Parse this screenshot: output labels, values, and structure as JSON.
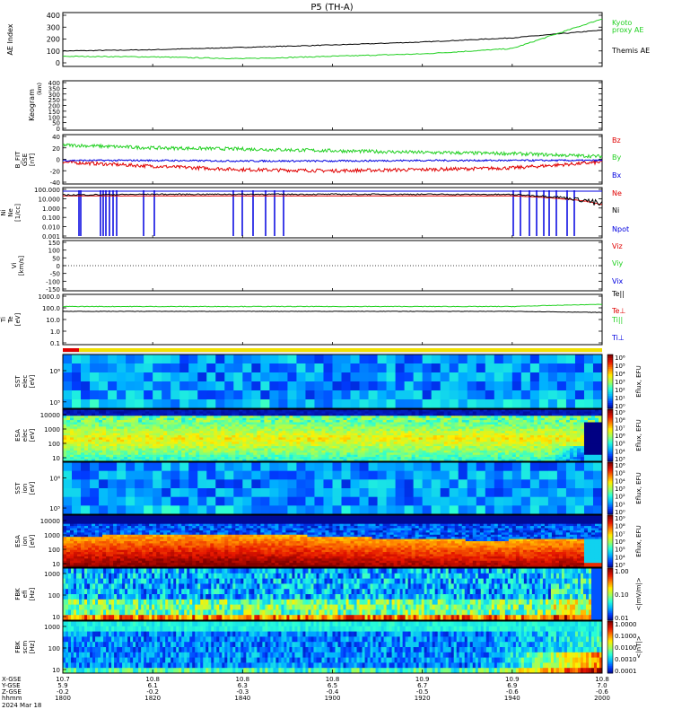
{
  "title": "P5 (TH-A)",
  "colors": {
    "black": "#000000",
    "red": "#e00000",
    "green": "#22d022",
    "blue": "#0000e0",
    "kyoto": "#10c010"
  },
  "panels": [
    {
      "id": "ae",
      "ylabel": "AE Index",
      "ticks": [
        "400",
        "300",
        "200",
        "100",
        "0"
      ],
      "legend": [
        {
          "text": "Kyoto",
          "color": "green"
        },
        {
          "text": "proxy AE",
          "color": "green"
        },
        {
          "text": "Themis AE",
          "color": "black"
        }
      ]
    },
    {
      "id": "keogram",
      "ylabel": "Keogram",
      "ticks": [
        "400",
        "350",
        "300",
        "250",
        "200",
        "150",
        "100",
        "50",
        "0"
      ],
      "legend": []
    },
    {
      "id": "bfield",
      "ylabel": "B_FIT\nGSE\n[nT]",
      "ticks": [
        "40",
        "20",
        "0",
        "-20",
        "-40"
      ],
      "legend": [
        {
          "text": "Bz",
          "color": "red"
        },
        {
          "text": "By",
          "color": "green"
        },
        {
          "text": "Bx",
          "color": "blue"
        }
      ]
    },
    {
      "id": "density",
      "ylabel": "Ni\nNe\n[1/cc]",
      "ticks": [
        "100.000",
        "10.000",
        "1.000",
        "0.100",
        "0.010",
        "0.001"
      ],
      "legend": [
        {
          "text": "Ne",
          "color": "red"
        },
        {
          "text": "Ni",
          "color": "black"
        },
        {
          "text": "Npot",
          "color": "blue"
        }
      ]
    },
    {
      "id": "velocity",
      "ylabel": "Vi\n[km/s]",
      "ticks": [
        "150",
        "100",
        "50",
        "0",
        "-50",
        "-100",
        "-150"
      ],
      "legend": [
        {
          "text": "Viz",
          "color": "red"
        },
        {
          "text": "Viy",
          "color": "green"
        },
        {
          "text": "Vix",
          "color": "blue"
        }
      ]
    },
    {
      "id": "temperature",
      "ylabel": "Ti\nTe\n[eV]",
      "ticks": [
        "1000.0",
        "100.0",
        "10.0",
        "1.0",
        "0.1"
      ],
      "legend": [
        {
          "text": "Te||",
          "color": "black"
        },
        {
          "text": "Te⊥",
          "color": "red"
        },
        {
          "text": "Ti||",
          "color": "green"
        },
        {
          "text": "Ti⊥",
          "color": "blue"
        }
      ]
    },
    {
      "id": "sst_e",
      "ylabel": "SST\nelec\n[eV]",
      "ticks": [
        "10⁶",
        "10⁵"
      ],
      "cbar": [
        "10⁶",
        "10⁵",
        "10⁴",
        "10³",
        "10²",
        "10¹",
        "10⁰"
      ],
      "cbar_label": "Eflux, EFU"
    },
    {
      "id": "esa_e",
      "ylabel": "ESA\nelec\n[eV]",
      "ticks": [
        "10000",
        "1000",
        "100",
        "10"
      ],
      "cbar": [
        "10⁹",
        "10⁸",
        "10⁷",
        "10⁶",
        "10⁵",
        "10⁴",
        "10³"
      ],
      "cbar_label": "Eflux, EFU"
    },
    {
      "id": "sst_i",
      "ylabel": "SST\nion\n[eV]",
      "ticks": [
        "10⁶",
        "10⁵"
      ],
      "cbar": [
        "10⁶",
        "10⁵",
        "10⁴",
        "10³",
        "10²",
        "10¹",
        "10⁰"
      ],
      "cbar_label": "Eflux, EFU"
    },
    {
      "id": "esa_i",
      "ylabel": "ESA\nion\n[eV]",
      "ticks": [
        "10000",
        "1000",
        "100",
        "10"
      ],
      "cbar": [
        "10⁹",
        "10⁸",
        "10⁷",
        "10⁶",
        "10⁵",
        "10⁴",
        "10³"
      ],
      "cbar_label": "Eflux, EFU"
    },
    {
      "id": "fbk_e",
      "ylabel": "FBK\nefi\n[Hz]",
      "ticks": [
        "1000",
        "100",
        "10"
      ],
      "cbar": [
        "1.00",
        "0.10",
        "0.01"
      ],
      "cbar_label": "<|mV/m|>"
    },
    {
      "id": "fbk_b",
      "ylabel": "FBK\nscm\n[Hz]",
      "ticks": [
        "1000",
        "100",
        "10"
      ],
      "cbar": [
        "1.0000",
        "0.1000",
        "0.0100",
        "0.0010",
        "0.0001"
      ],
      "cbar_label": "<|nT|>"
    }
  ],
  "xaxis": {
    "row_labels": [
      "X-GSE",
      "Y-GSE",
      "Z-GSE",
      "hhmm",
      "2024 Mar 18"
    ],
    "ticks": [
      {
        "x": "10.7",
        "y": "5.9",
        "z": "-0.2",
        "t": "1800"
      },
      {
        "x": "10.8",
        "y": "6.1",
        "z": "-0.2",
        "t": "1820"
      },
      {
        "x": "10.8",
        "y": "6.3",
        "z": "-0.3",
        "t": "1840"
      },
      {
        "x": "10.8",
        "y": "6.5",
        "z": "-0.4",
        "t": "1900"
      },
      {
        "x": "10.9",
        "y": "6.7",
        "z": "-0.5",
        "t": "1920"
      },
      {
        "x": "10.9",
        "y": "6.9",
        "z": "-0.6",
        "t": "1940"
      },
      {
        "x": "10.8",
        "y": "7.0",
        "z": "-0.6",
        "t": "2000"
      }
    ]
  },
  "chart_data": [
    {
      "type": "line",
      "panel": "AE index",
      "x": [
        "1800",
        "1820",
        "1840",
        "1900",
        "1920",
        "1940",
        "2000"
      ],
      "series": [
        {
          "name": "Themis AE",
          "values": [
            100,
            110,
            130,
            150,
            175,
            210,
            275
          ]
        },
        {
          "name": "Kyoto proxy AE",
          "values": [
            55,
            50,
            35,
            55,
            75,
            120,
            370
          ]
        }
      ],
      "ylim": [
        0,
        400
      ]
    },
    {
      "type": "line",
      "panel": "B_FIT GSE [nT]",
      "x": [
        "1800",
        "1820",
        "1840",
        "1900",
        "1920",
        "1940",
        "2000"
      ],
      "series": [
        {
          "name": "Bz",
          "values": [
            -5,
            -12,
            -18,
            -20,
            -18,
            -15,
            -5
          ]
        },
        {
          "name": "By",
          "values": [
            25,
            20,
            18,
            15,
            12,
            10,
            5
          ]
        },
        {
          "name": "Bx",
          "values": [
            -2,
            -2,
            -3,
            -3,
            -2,
            -2,
            -2
          ]
        }
      ],
      "ylim": [
        -40,
        40
      ]
    },
    {
      "type": "line",
      "panel": "Ni Ne [1/cc]",
      "x": [
        "1800",
        "1820",
        "1840",
        "1900",
        "1920",
        "1940",
        "2000"
      ],
      "series": [
        {
          "name": "Ni",
          "values": [
            25,
            30,
            30,
            30,
            30,
            28,
            2
          ]
        },
        {
          "name": "Ne",
          "values": [
            20,
            20,
            20,
            20,
            20,
            20,
            2
          ]
        }
      ],
      "ylim": [
        0.001,
        100
      ]
    },
    {
      "type": "line",
      "panel": "Ti Te [eV]",
      "x": [
        "1800",
        "1820",
        "1840",
        "1900",
        "1920",
        "1940",
        "2000"
      ],
      "series": [
        {
          "name": "Ti||",
          "values": [
            130,
            130,
            130,
            130,
            130,
            130,
            200
          ]
        },
        {
          "name": "Te||",
          "values": [
            50,
            50,
            50,
            50,
            50,
            50,
            40
          ]
        }
      ],
      "ylim": [
        0.1,
        1000
      ]
    }
  ]
}
